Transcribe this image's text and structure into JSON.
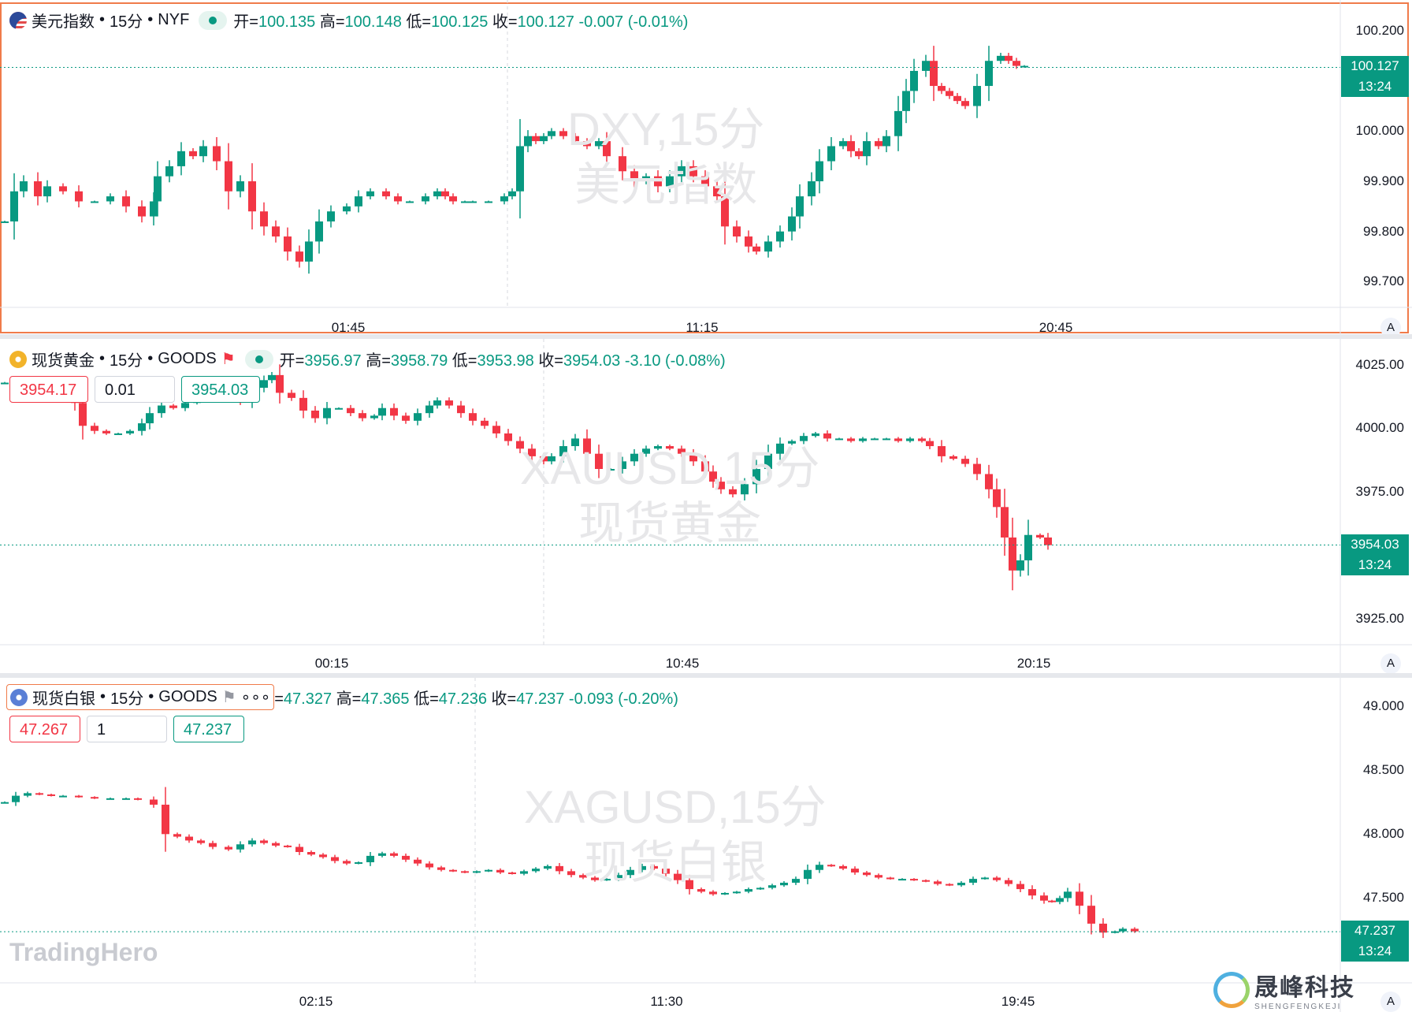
{
  "panels": [
    {
      "symbol_name": "美元指数",
      "interval": "15分",
      "exchange": "NYF",
      "ohlc": {
        "open_label": "开=",
        "open": "100.135",
        "high_label": "高=",
        "high": "100.148",
        "low_label": "低=",
        "low": "100.125",
        "close_label": "收=",
        "close": "100.127",
        "change": "-0.007",
        "change_pct": "(-0.01%)"
      },
      "watermark_line1": "DXY,15分",
      "watermark_line2": "美元指数",
      "y_ticks": [
        "100.200",
        "100.000",
        "99.900",
        "99.800",
        "99.700"
      ],
      "x_ticks": [
        "01:45",
        "11:15",
        "20:45"
      ],
      "last_price": "100.127",
      "last_time": "13:24",
      "icon": "us-flag-icon"
    },
    {
      "symbol_name": "现货黄金",
      "interval": "15分",
      "exchange": "GOODS",
      "ohlc": {
        "open_label": "开=",
        "open": "3956.97",
        "high_label": "高=",
        "high": "3958.79",
        "low_label": "低=",
        "low": "3953.98",
        "close_label": "收=",
        "close": "3954.03",
        "change": "-3.10",
        "change_pct": "(-0.08%)"
      },
      "trade": {
        "sell": "3954.17",
        "qty": "0.01",
        "buy": "3954.03"
      },
      "watermark_line1": "XAUUSD,15分",
      "watermark_line2": "现货黄金",
      "y_ticks": [
        "4025.00",
        "4000.00",
        "3975.00",
        "3925.00"
      ],
      "x_ticks": [
        "00:15",
        "10:45",
        "20:15"
      ],
      "last_price": "3954.03",
      "last_time": "13:24",
      "icon": "gold-bars-icon"
    },
    {
      "symbol_name": "现货白银",
      "interval": "15分",
      "exchange": "GOODS",
      "more": "∘∘∘",
      "ohlc": {
        "open_label": "=",
        "open": "47.327",
        "high_label": "高=",
        "high": "47.365",
        "low_label": "低=",
        "low": "47.236",
        "close_label": "收=",
        "close": "47.237",
        "change": "-0.093",
        "change_pct": "(-0.20%)"
      },
      "trade": {
        "sell": "47.267",
        "qty": "1",
        "buy": "47.237"
      },
      "watermark_line1": "XAGUSD,15分",
      "watermark_line2": "现货白银",
      "y_ticks": [
        "49.000",
        "48.500",
        "48.000",
        "47.500"
      ],
      "x_ticks": [
        "02:15",
        "11:30",
        "19:45"
      ],
      "last_price": "47.237",
      "last_time": "13:24",
      "icon": "silver-bars-icon"
    }
  ],
  "axis_button": "A",
  "brand_left": "TradingHero",
  "brand_right": "晟峰科技",
  "brand_right_sub": "SHENGFENGKEJI",
  "colors": {
    "up": "#089981",
    "down": "#f23645",
    "active_border": "#f07b4a"
  },
  "chart_data": [
    {
      "type": "candlestick",
      "title": "美元指数",
      "ylim": [
        99.655,
        100.255
      ],
      "last": 100.127,
      "points": [
        [
          6,
          99.82
        ],
        [
          18,
          99.88
        ],
        [
          30,
          99.9
        ],
        [
          48,
          99.87
        ],
        [
          60,
          99.89
        ],
        [
          80,
          99.88
        ],
        [
          100,
          99.86
        ],
        [
          120,
          99.86
        ],
        [
          140,
          99.87
        ],
        [
          160,
          99.85
        ],
        [
          180,
          99.83
        ],
        [
          195,
          99.86
        ],
        [
          200,
          99.91
        ],
        [
          215,
          99.93
        ],
        [
          230,
          99.96
        ],
        [
          245,
          99.95
        ],
        [
          258,
          99.97
        ],
        [
          275,
          99.94
        ],
        [
          290,
          99.88
        ],
        [
          305,
          99.9
        ],
        [
          320,
          99.84
        ],
        [
          335,
          99.81
        ],
        [
          350,
          99.79
        ],
        [
          365,
          99.76
        ],
        [
          380,
          99.74
        ],
        [
          392,
          99.78
        ],
        [
          405,
          99.82
        ],
        [
          420,
          99.84
        ],
        [
          440,
          99.85
        ],
        [
          455,
          99.87
        ],
        [
          470,
          99.88
        ],
        [
          490,
          99.87
        ],
        [
          505,
          99.86
        ],
        [
          520,
          99.86
        ],
        [
          540,
          99.87
        ],
        [
          555,
          99.88
        ],
        [
          565,
          99.87
        ],
        [
          575,
          99.86
        ],
        [
          590,
          99.86
        ],
        [
          600,
          99.86
        ],
        [
          620,
          99.86
        ],
        [
          640,
          99.87
        ],
        [
          650,
          99.88
        ],
        [
          660,
          99.97
        ],
        [
          670,
          99.99
        ],
        [
          680,
          99.98
        ],
        [
          690,
          99.99
        ],
        [
          700,
          100.0
        ],
        [
          715,
          99.99
        ],
        [
          730,
          99.98
        ],
        [
          745,
          99.97
        ],
        [
          760,
          99.98
        ],
        [
          770,
          99.95
        ],
        [
          790,
          99.92
        ],
        [
          805,
          99.9
        ],
        [
          820,
          99.91
        ],
        [
          835,
          99.89
        ],
        [
          850,
          99.91
        ],
        [
          865,
          99.93
        ],
        [
          880,
          99.91
        ],
        [
          895,
          99.89
        ],
        [
          910,
          99.87
        ],
        [
          920,
          99.81
        ],
        [
          935,
          99.79
        ],
        [
          950,
          99.77
        ],
        [
          960,
          99.76
        ],
        [
          975,
          99.78
        ],
        [
          990,
          99.8
        ],
        [
          1005,
          99.83
        ],
        [
          1015,
          99.87
        ],
        [
          1030,
          99.9
        ],
        [
          1040,
          99.94
        ],
        [
          1055,
          99.97
        ],
        [
          1070,
          99.98
        ],
        [
          1080,
          99.96
        ],
        [
          1090,
          99.95
        ],
        [
          1100,
          99.98
        ],
        [
          1115,
          99.97
        ],
        [
          1125,
          99.99
        ],
        [
          1140,
          100.04
        ],
        [
          1150,
          100.08
        ],
        [
          1160,
          100.12
        ],
        [
          1175,
          100.14
        ],
        [
          1185,
          100.09
        ],
        [
          1195,
          100.08
        ],
        [
          1205,
          100.07
        ],
        [
          1215,
          100.06
        ],
        [
          1225,
          100.05
        ],
        [
          1240,
          100.09
        ],
        [
          1255,
          100.14
        ],
        [
          1270,
          100.15
        ],
        [
          1280,
          100.14
        ],
        [
          1290,
          100.13
        ],
        [
          1300,
          100.13
        ]
      ]
    },
    {
      "type": "candlestick",
      "title": "现货黄金",
      "ylim": [
        3916.0,
        4034.0
      ],
      "last": 3954.03,
      "points": [
        [
          6,
          4018
        ],
        [
          20,
          4015
        ],
        [
          40,
          4016
        ],
        [
          60,
          4016
        ],
        [
          80,
          4015
        ],
        [
          95,
          4010
        ],
        [
          105,
          4001
        ],
        [
          120,
          3999
        ],
        [
          135,
          3998
        ],
        [
          150,
          3998
        ],
        [
          165,
          3999
        ],
        [
          180,
          4002
        ],
        [
          190,
          4006
        ],
        [
          205,
          4009
        ],
        [
          220,
          4008
        ],
        [
          235,
          4010
        ],
        [
          250,
          4011
        ],
        [
          265,
          4012
        ],
        [
          280,
          4013
        ],
        [
          295,
          4014
        ],
        [
          305,
          4011
        ],
        [
          320,
          4016
        ],
        [
          335,
          4019
        ],
        [
          345,
          4021
        ],
        [
          355,
          4014
        ],
        [
          370,
          4012
        ],
        [
          385,
          4007
        ],
        [
          400,
          4004
        ],
        [
          415,
          4008
        ],
        [
          430,
          4008
        ],
        [
          445,
          4006
        ],
        [
          460,
          4004
        ],
        [
          475,
          4005
        ],
        [
          485,
          4008
        ],
        [
          500,
          4005
        ],
        [
          515,
          4003
        ],
        [
          530,
          4006
        ],
        [
          545,
          4009
        ],
        [
          555,
          4011
        ],
        [
          570,
          4009
        ],
        [
          585,
          4006
        ],
        [
          600,
          4003
        ],
        [
          615,
          4001
        ],
        [
          630,
          3998
        ],
        [
          645,
          3995
        ],
        [
          660,
          3992
        ],
        [
          675,
          3989
        ],
        [
          690,
          3987
        ],
        [
          700,
          3989
        ],
        [
          715,
          3993
        ],
        [
          730,
          3996
        ],
        [
          745,
          3990
        ],
        [
          760,
          3984
        ],
        [
          775,
          3984
        ],
        [
          790,
          3987
        ],
        [
          805,
          3990
        ],
        [
          820,
          3992
        ],
        [
          835,
          3993
        ],
        [
          850,
          3992
        ],
        [
          865,
          3990
        ],
        [
          880,
          3987
        ],
        [
          895,
          3983
        ],
        [
          905,
          3979
        ],
        [
          915,
          3976
        ],
        [
          930,
          3974
        ],
        [
          945,
          3978
        ],
        [
          960,
          3984
        ],
        [
          975,
          3990
        ],
        [
          990,
          3994
        ],
        [
          1005,
          3995
        ],
        [
          1020,
          3997
        ],
        [
          1035,
          3998
        ],
        [
          1050,
          3996
        ],
        [
          1065,
          3996
        ],
        [
          1080,
          3995
        ],
        [
          1095,
          3996
        ],
        [
          1110,
          3996
        ],
        [
          1125,
          3996
        ],
        [
          1140,
          3995
        ],
        [
          1155,
          3996
        ],
        [
          1170,
          3995
        ],
        [
          1180,
          3993
        ],
        [
          1195,
          3989
        ],
        [
          1210,
          3988
        ],
        [
          1225,
          3986
        ],
        [
          1240,
          3982
        ],
        [
          1255,
          3976
        ],
        [
          1265,
          3969
        ],
        [
          1275,
          3957
        ],
        [
          1285,
          3944
        ],
        [
          1295,
          3948
        ],
        [
          1305,
          3958
        ],
        [
          1320,
          3957
        ],
        [
          1330,
          3954
        ]
      ]
    },
    {
      "type": "candlestick",
      "title": "现货白银",
      "ylim": [
        46.862,
        49.197
      ],
      "last": 47.237,
      "points": [
        [
          6,
          48.25
        ],
        [
          20,
          48.3
        ],
        [
          35,
          48.32
        ],
        [
          50,
          48.31
        ],
        [
          65,
          48.3
        ],
        [
          80,
          48.3
        ],
        [
          100,
          48.29
        ],
        [
          120,
          48.28
        ],
        [
          140,
          48.28
        ],
        [
          160,
          48.28
        ],
        [
          175,
          48.27
        ],
        [
          195,
          48.23
        ],
        [
          210,
          48.0
        ],
        [
          225,
          47.98
        ],
        [
          240,
          47.95
        ],
        [
          255,
          47.93
        ],
        [
          270,
          47.9
        ],
        [
          290,
          47.88
        ],
        [
          305,
          47.92
        ],
        [
          320,
          47.95
        ],
        [
          335,
          47.93
        ],
        [
          350,
          47.91
        ],
        [
          365,
          47.9
        ],
        [
          380,
          47.86
        ],
        [
          395,
          47.84
        ],
        [
          410,
          47.82
        ],
        [
          425,
          47.79
        ],
        [
          440,
          47.77
        ],
        [
          455,
          47.78
        ],
        [
          470,
          47.83
        ],
        [
          485,
          47.85
        ],
        [
          500,
          47.83
        ],
        [
          515,
          47.8
        ],
        [
          530,
          47.77
        ],
        [
          545,
          47.74
        ],
        [
          560,
          47.72
        ],
        [
          575,
          47.71
        ],
        [
          590,
          47.7
        ],
        [
          605,
          47.71
        ],
        [
          620,
          47.72
        ],
        [
          635,
          47.7
        ],
        [
          650,
          47.69
        ],
        [
          665,
          47.71
        ],
        [
          680,
          47.73
        ],
        [
          695,
          47.75
        ],
        [
          710,
          47.71
        ],
        [
          725,
          47.68
        ],
        [
          740,
          47.66
        ],
        [
          755,
          47.64
        ],
        [
          770,
          47.65
        ],
        [
          785,
          47.68
        ],
        [
          800,
          47.72
        ],
        [
          815,
          47.75
        ],
        [
          830,
          47.73
        ],
        [
          845,
          47.69
        ],
        [
          860,
          47.64
        ],
        [
          875,
          47.57
        ],
        [
          890,
          47.55
        ],
        [
          905,
          47.53
        ],
        [
          920,
          47.54
        ],
        [
          935,
          47.55
        ],
        [
          950,
          47.57
        ],
        [
          965,
          47.58
        ],
        [
          980,
          47.6
        ],
        [
          995,
          47.62
        ],
        [
          1010,
          47.65
        ],
        [
          1025,
          47.72
        ],
        [
          1040,
          47.76
        ],
        [
          1055,
          47.75
        ],
        [
          1070,
          47.73
        ],
        [
          1085,
          47.7
        ],
        [
          1100,
          47.68
        ],
        [
          1115,
          47.66
        ],
        [
          1130,
          47.65
        ],
        [
          1145,
          47.65
        ],
        [
          1160,
          47.64
        ],
        [
          1175,
          47.63
        ],
        [
          1190,
          47.61
        ],
        [
          1205,
          47.6
        ],
        [
          1220,
          47.62
        ],
        [
          1235,
          47.65
        ],
        [
          1250,
          47.66
        ],
        [
          1265,
          47.64
        ],
        [
          1280,
          47.61
        ],
        [
          1295,
          47.57
        ],
        [
          1310,
          47.52
        ],
        [
          1325,
          47.48
        ],
        [
          1335,
          47.47
        ],
        [
          1345,
          47.5
        ],
        [
          1355,
          47.55
        ],
        [
          1370,
          47.44
        ],
        [
          1385,
          47.3
        ],
        [
          1400,
          47.23
        ],
        [
          1415,
          47.24
        ],
        [
          1425,
          47.26
        ],
        [
          1440,
          47.24
        ]
      ]
    }
  ]
}
